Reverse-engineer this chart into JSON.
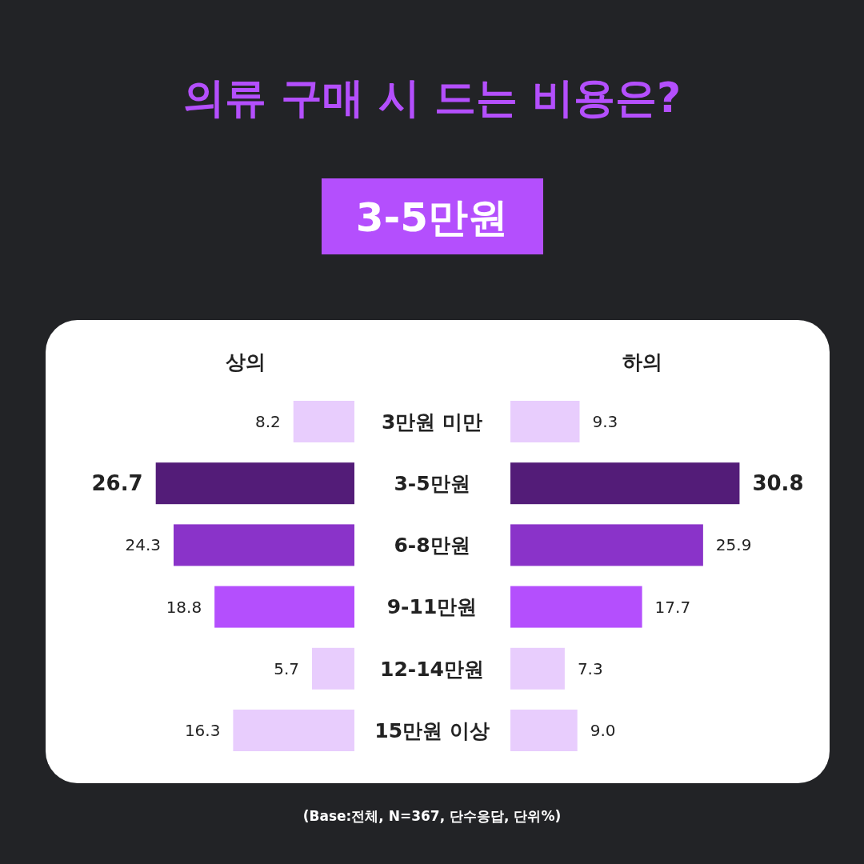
{
  "chart_data": [
    {
      "type": "bar",
      "orientation": "horizontal",
      "title": "의류 구매 시 드는 비용은?",
      "subtitle": "3-5만원",
      "xlabel": "상의",
      "categories": [
        "3만원 미만",
        "3-5만원",
        "6-8만원",
        "9-11만원",
        "12-14만원",
        "15만원 이상"
      ],
      "values": [
        8.2,
        26.7,
        24.3,
        18.8,
        5.7,
        16.3
      ],
      "value_labels": [
        "8.2",
        "26.7",
        "24.3",
        "18.8",
        "5.7",
        "16.3"
      ],
      "colors": [
        "#e8cdfd",
        "#531c78",
        "#8a33c9",
        "#b44ffd",
        "#e8cdfd",
        "#e8cdfd"
      ],
      "annotations": [
        "(Base:전체, N=367, 단수응답, 단위%)"
      ]
    },
    {
      "type": "bar",
      "orientation": "horizontal",
      "xlabel": "하의",
      "categories": [
        null,
        null,
        null,
        null,
        null,
        null
      ],
      "values": [
        9.3,
        30.8,
        25.9,
        17.7,
        7.3,
        9.0
      ],
      "value_labels": [
        "9.3",
        "30.8",
        "25.9",
        "17.7",
        "7.3",
        "9.0"
      ],
      "colors": [
        "#e8cdfd",
        "#531c78",
        "#8a33c9",
        "#b44ffd",
        "#e8cdfd",
        "#e8cdfd"
      ]
    }
  ]
}
